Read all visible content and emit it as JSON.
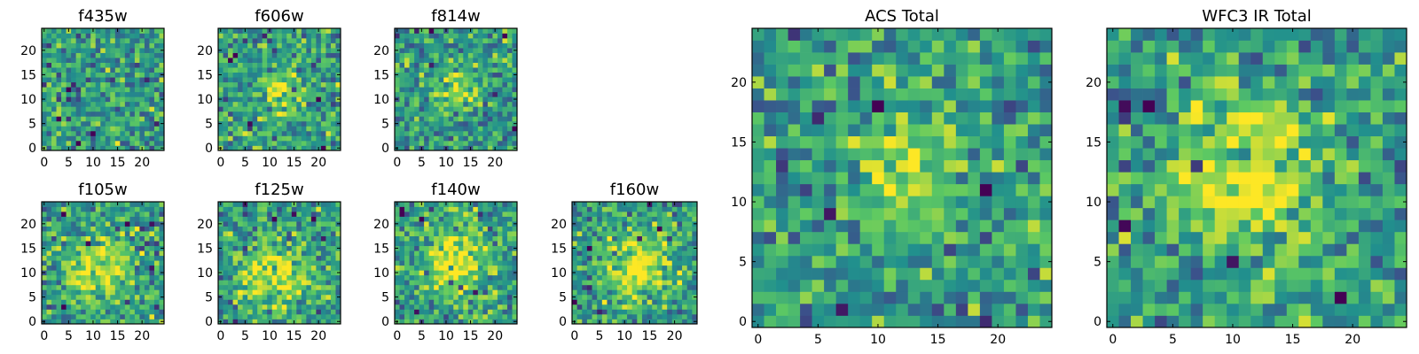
{
  "colors": {
    "colormap": "viridis",
    "stops": [
      "#440154",
      "#3b528b",
      "#21908d",
      "#5dc962",
      "#fde725"
    ]
  },
  "chart_data": [
    {
      "type": "heatmap",
      "title": "f435w",
      "grid_size": [
        25,
        25
      ],
      "xticks": [
        0,
        5,
        10,
        15,
        20
      ],
      "yticks": [
        0,
        5,
        10,
        15,
        20
      ],
      "xlim": [
        -0.5,
        24.5
      ],
      "ylim": [
        -0.5,
        24.5
      ],
      "colormap": "viridis",
      "grid": false,
      "values_note": "pixel values are random noise"
    },
    {
      "type": "heatmap",
      "title": "f606w",
      "grid_size": [
        25,
        25
      ],
      "xticks": [
        0,
        5,
        10,
        15,
        20
      ],
      "yticks": [
        0,
        5,
        10,
        15,
        20
      ],
      "xlim": [
        -0.5,
        24.5
      ],
      "ylim": [
        -0.5,
        24.5
      ],
      "colormap": "viridis",
      "grid": false,
      "source_center": [
        12,
        12
      ]
    },
    {
      "type": "heatmap",
      "title": "f814w",
      "grid_size": [
        25,
        25
      ],
      "xticks": [
        0,
        5,
        10,
        15,
        20
      ],
      "yticks": [
        0,
        5,
        10,
        15,
        20
      ],
      "xlim": [
        -0.5,
        24.5
      ],
      "ylim": [
        -0.5,
        24.5
      ],
      "colormap": "viridis",
      "grid": false,
      "source_center": [
        12,
        12
      ]
    },
    {
      "type": "heatmap",
      "title": "f105w",
      "grid_size": [
        25,
        25
      ],
      "xticks": [
        0,
        5,
        10,
        15,
        20
      ],
      "yticks": [
        0,
        5,
        10,
        15,
        20
      ],
      "xlim": [
        -0.5,
        24.5
      ],
      "ylim": [
        -0.5,
        24.5
      ],
      "colormap": "viridis",
      "grid": false,
      "source_center": [
        11,
        11
      ]
    },
    {
      "type": "heatmap",
      "title": "f125w",
      "grid_size": [
        25,
        25
      ],
      "xticks": [
        0,
        5,
        10,
        15,
        20
      ],
      "yticks": [
        0,
        5,
        10,
        15,
        20
      ],
      "xlim": [
        -0.5,
        24.5
      ],
      "ylim": [
        -0.5,
        24.5
      ],
      "colormap": "viridis",
      "grid": false,
      "source_center": [
        11,
        10
      ]
    },
    {
      "type": "heatmap",
      "title": "f140w",
      "grid_size": [
        25,
        25
      ],
      "xticks": [
        0,
        5,
        10,
        15,
        20
      ],
      "yticks": [
        0,
        5,
        10,
        15,
        20
      ],
      "xlim": [
        -0.5,
        24.5
      ],
      "ylim": [
        -0.5,
        24.5
      ],
      "colormap": "viridis",
      "grid": false,
      "source_center": [
        12,
        12
      ]
    },
    {
      "type": "heatmap",
      "title": "f160w",
      "grid_size": [
        25,
        25
      ],
      "xticks": [
        0,
        5,
        10,
        15,
        20
      ],
      "yticks": [
        0,
        5,
        10,
        15,
        20
      ],
      "xlim": [
        -0.5,
        24.5
      ],
      "ylim": [
        -0.5,
        24.5
      ],
      "colormap": "viridis",
      "grid": false,
      "source_center": [
        13,
        11
      ]
    },
    {
      "type": "heatmap",
      "title": "ACS Total",
      "grid_size": [
        25,
        25
      ],
      "xticks": [
        0,
        5,
        10,
        15,
        20
      ],
      "yticks": [
        0,
        5,
        10,
        15,
        20
      ],
      "xlim": [
        -0.5,
        24.5
      ],
      "ylim": [
        -0.5,
        24.5
      ],
      "colormap": "viridis",
      "grid": false,
      "source_center": [
        12,
        12
      ]
    },
    {
      "type": "heatmap",
      "title": "WFC3 IR Total",
      "grid_size": [
        25,
        25
      ],
      "xticks": [
        0,
        5,
        10,
        15,
        20
      ],
      "yticks": [
        0,
        5,
        10,
        15,
        20
      ],
      "xlim": [
        -0.5,
        24.5
      ],
      "ylim": [
        -0.5,
        24.5
      ],
      "colormap": "viridis",
      "grid": false,
      "source_center": [
        11,
        12
      ]
    }
  ]
}
